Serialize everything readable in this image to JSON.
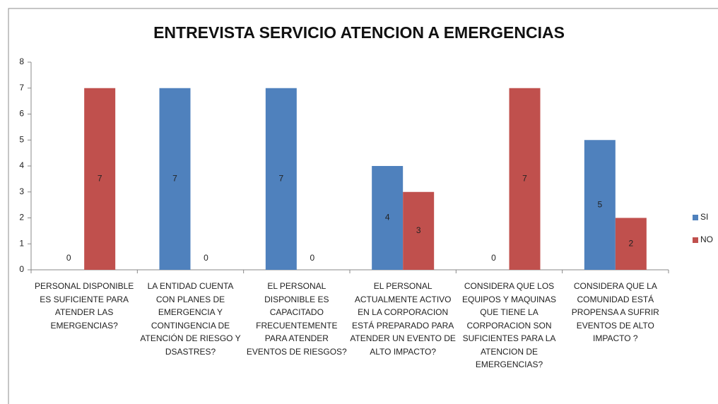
{
  "chart_data": {
    "type": "bar",
    "title": "ENTREVISTA SERVICIO ATENCION A EMERGENCIAS",
    "categories": [
      "PERSONAL DISPONIBLE ES SUFICIENTE PARA ATENDER LAS EMERGENCIAS?",
      "LA ENTIDAD CUENTA CON PLANES DE EMERGENCIA Y CONTINGENCIA DE ATENCIÓN DE RIESGO Y DSASTRES?",
      "EL PERSONAL DISPONIBLE ES CAPACITADO FRECUENTEMENTE PARA ATENDER EVENTOS DE RIESGOS?",
      "EL PERSONAL ACTUALMENTE ACTIVO EN LA CORPORACION ESTÁ PREPARADO PARA ATENDER UN EVENTO DE ALTO IMPACTO?",
      "CONSIDERA QUE LOS EQUIPOS Y MAQUINAS QUE TIENE LA CORPORACION SON SUFICIENTES PARA LA ATENCION DE EMERGENCIAS?",
      "CONSIDERA QUE LA COMUNIDAD ESTÁ PROPENSA A SUFRIR EVENTOS DE ALTO IMPACTO ?"
    ],
    "series": [
      {
        "name": "SI",
        "color": "#4f81bd",
        "values": [
          0,
          7,
          7,
          4,
          0,
          5
        ]
      },
      {
        "name": "NO",
        "color": "#c0504d",
        "values": [
          7,
          0,
          0,
          3,
          7,
          2
        ]
      }
    ],
    "ylim": [
      0,
      8
    ],
    "yticks": [
      0,
      1,
      2,
      3,
      4,
      5,
      6,
      7,
      8
    ],
    "legend": "right"
  }
}
